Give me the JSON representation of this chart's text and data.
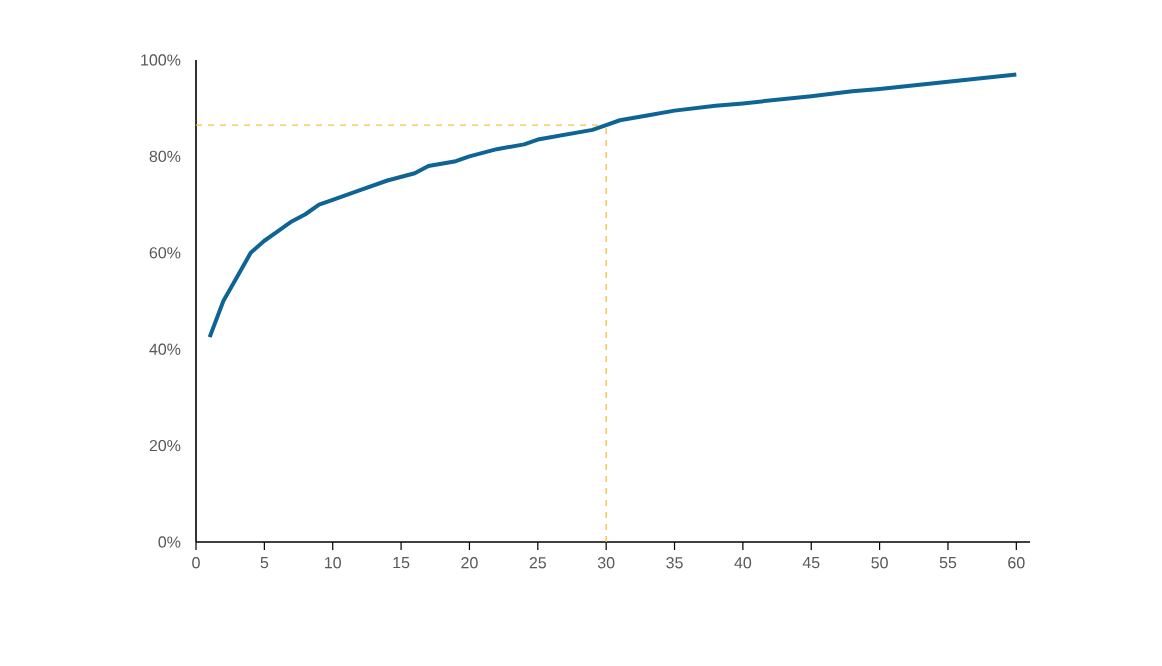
{
  "chart_data": {
    "type": "line",
    "color": "#0f6496",
    "x": [
      1,
      2,
      3,
      4,
      5,
      6,
      7,
      8,
      9,
      10,
      12,
      14,
      16,
      17,
      19,
      20,
      22,
      24,
      25,
      27,
      29,
      30,
      31,
      33,
      35,
      38,
      40,
      45,
      48,
      50,
      55,
      60
    ],
    "values": [
      42.5,
      50,
      55,
      60,
      62.5,
      64.5,
      66.5,
      68,
      70,
      71,
      73,
      75,
      76.5,
      78,
      79,
      80,
      81.5,
      82.5,
      83.5,
      84.5,
      85.5,
      86.5,
      87.5,
      88.5,
      89.5,
      90.5,
      91,
      92.5,
      93.5,
      94,
      95.5,
      97
    ],
    "xlim": [
      0,
      61
    ],
    "xticks": [
      0,
      5,
      10,
      15,
      20,
      25,
      30,
      35,
      40,
      45,
      50,
      55,
      60
    ],
    "ylim": [
      0,
      100
    ],
    "yticks": [
      {
        "value": 0,
        "label": "0%"
      },
      {
        "value": 20,
        "label": "20%"
      },
      {
        "value": 40,
        "label": "40%"
      },
      {
        "value": 60,
        "label": "60%"
      },
      {
        "value": 80,
        "label": "80%"
      },
      {
        "value": 100,
        "label": "100%"
      }
    ],
    "ref_lines": [
      {
        "axis": "x",
        "value": 30,
        "color": "#f5c242",
        "line_style": "dashed"
      },
      {
        "axis": "y",
        "value": 86.5,
        "color": "#f5c242",
        "line_style": "dashed"
      }
    ],
    "grid": false,
    "marker": "none",
    "line_style": "solid"
  }
}
